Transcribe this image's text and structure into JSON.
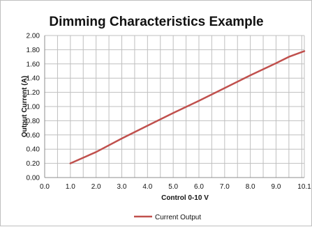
{
  "chart_data": {
    "type": "line",
    "title": "Dimming Characteristics Example",
    "xlabel": "Control 0-10 V",
    "ylabel": "Output Current (A)",
    "xlim": [
      0,
      10.1
    ],
    "ylim": [
      0,
      2.0
    ],
    "x_ticks": [
      "0.0",
      "1.0",
      "2.0",
      "3.0",
      "4.0",
      "5.0",
      "6.0",
      "7.0",
      "8.0",
      "9.0",
      "10.1"
    ],
    "y_ticks": [
      "0.00",
      "0.20",
      "0.40",
      "0.60",
      "0.80",
      "1.00",
      "1.20",
      "1.40",
      "1.60",
      "1.80",
      "2.00"
    ],
    "grid": true,
    "legend_position": "bottom",
    "series": [
      {
        "name": "Current Output",
        "color": "#c0504d",
        "x": [
          1.0,
          2.0,
          3.0,
          4.0,
          5.0,
          6.0,
          7.0,
          8.0,
          9.0,
          9.5,
          10.1
        ],
        "y": [
          0.2,
          0.36,
          0.55,
          0.73,
          0.91,
          1.08,
          1.26,
          1.44,
          1.61,
          1.7,
          1.78
        ]
      }
    ]
  }
}
